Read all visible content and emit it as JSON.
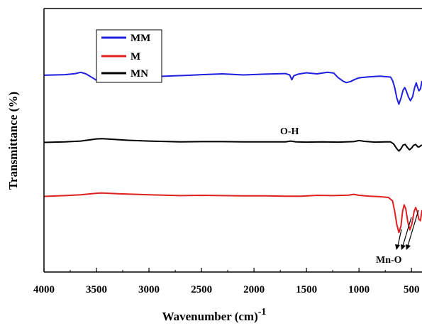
{
  "chart_data": {
    "type": "line",
    "xlabel": "Wavenumber (cm)",
    "xlabel_superscript": "-1",
    "ylabel": "Transmittance (%)",
    "xlim": [
      4000,
      400
    ],
    "x_ticks": [
      4000,
      3500,
      3000,
      2500,
      2000,
      1500,
      1000,
      500
    ],
    "y_ticks_shown": false,
    "grid": false,
    "legend_position": "top-left",
    "legend": [
      {
        "name": "MM",
        "color": "#1f1fe0"
      },
      {
        "name": "M",
        "color": "#e02020"
      },
      {
        "name": "MN",
        "color": "#000000"
      }
    ],
    "annotations": [
      {
        "text": "O-H"
      },
      {
        "text": "Mn-O"
      }
    ],
    "series": [
      {
        "name": "MM",
        "color": "#1f1fe0",
        "points": [
          [
            4000,
            0.747
          ],
          [
            3800,
            0.749
          ],
          [
            3700,
            0.753
          ],
          [
            3650,
            0.758
          ],
          [
            3600,
            0.752
          ],
          [
            3500,
            0.728
          ],
          [
            3450,
            0.725
          ],
          [
            3400,
            0.731
          ],
          [
            3200,
            0.735
          ],
          [
            3000,
            0.741
          ],
          [
            2800,
            0.744
          ],
          [
            2600,
            0.747
          ],
          [
            2500,
            0.749
          ],
          [
            2300,
            0.752
          ],
          [
            2100,
            0.748
          ],
          [
            1900,
            0.751
          ],
          [
            1700,
            0.753
          ],
          [
            1660,
            0.748
          ],
          [
            1640,
            0.73
          ],
          [
            1620,
            0.745
          ],
          [
            1580,
            0.751
          ],
          [
            1500,
            0.756
          ],
          [
            1400,
            0.752
          ],
          [
            1300,
            0.758
          ],
          [
            1240,
            0.755
          ],
          [
            1200,
            0.738
          ],
          [
            1150,
            0.724
          ],
          [
            1120,
            0.719
          ],
          [
            1080,
            0.723
          ],
          [
            1040,
            0.731
          ],
          [
            1000,
            0.737
          ],
          [
            900,
            0.741
          ],
          [
            800,
            0.743
          ],
          [
            700,
            0.74
          ],
          [
            680,
            0.727
          ],
          [
            660,
            0.7
          ],
          [
            640,
            0.66
          ],
          [
            620,
            0.637
          ],
          [
            600,
            0.66
          ],
          [
            580,
            0.69
          ],
          [
            565,
            0.7
          ],
          [
            550,
            0.688
          ],
          [
            530,
            0.665
          ],
          [
            510,
            0.65
          ],
          [
            490,
            0.665
          ],
          [
            470,
            0.7
          ],
          [
            455,
            0.718
          ],
          [
            445,
            0.705
          ],
          [
            430,
            0.688
          ],
          [
            415,
            0.695
          ],
          [
            400,
            0.725
          ]
        ]
      },
      {
        "name": "MN",
        "color": "#000000",
        "points": [
          [
            4000,
            0.492
          ],
          [
            3800,
            0.494
          ],
          [
            3650,
            0.497
          ],
          [
            3500,
            0.505
          ],
          [
            3450,
            0.506
          ],
          [
            3400,
            0.505
          ],
          [
            3200,
            0.5
          ],
          [
            3000,
            0.497
          ],
          [
            2700,
            0.494
          ],
          [
            2500,
            0.495
          ],
          [
            2300,
            0.495
          ],
          [
            2100,
            0.494
          ],
          [
            1900,
            0.494
          ],
          [
            1700,
            0.494
          ],
          [
            1650,
            0.497
          ],
          [
            1600,
            0.494
          ],
          [
            1500,
            0.493
          ],
          [
            1350,
            0.494
          ],
          [
            1200,
            0.493
          ],
          [
            1050,
            0.495
          ],
          [
            1000,
            0.499
          ],
          [
            950,
            0.496
          ],
          [
            850,
            0.493
          ],
          [
            750,
            0.494
          ],
          [
            700,
            0.494
          ],
          [
            670,
            0.486
          ],
          [
            640,
            0.468
          ],
          [
            620,
            0.459
          ],
          [
            600,
            0.468
          ],
          [
            580,
            0.482
          ],
          [
            560,
            0.484
          ],
          [
            540,
            0.473
          ],
          [
            520,
            0.464
          ],
          [
            500,
            0.47
          ],
          [
            480,
            0.481
          ],
          [
            460,
            0.484
          ],
          [
            440,
            0.475
          ],
          [
            425,
            0.475
          ],
          [
            410,
            0.48
          ],
          [
            400,
            0.482
          ]
        ]
      },
      {
        "name": "M",
        "color": "#e02020",
        "points": [
          [
            4000,
            0.287
          ],
          [
            3800,
            0.29
          ],
          [
            3650,
            0.293
          ],
          [
            3500,
            0.299
          ],
          [
            3450,
            0.3
          ],
          [
            3300,
            0.297
          ],
          [
            3000,
            0.293
          ],
          [
            2700,
            0.29
          ],
          [
            2500,
            0.291
          ],
          [
            2300,
            0.29
          ],
          [
            2100,
            0.289
          ],
          [
            1900,
            0.289
          ],
          [
            1700,
            0.288
          ],
          [
            1550,
            0.288
          ],
          [
            1400,
            0.291
          ],
          [
            1250,
            0.29
          ],
          [
            1100,
            0.292
          ],
          [
            1050,
            0.295
          ],
          [
            1000,
            0.291
          ],
          [
            900,
            0.288
          ],
          [
            800,
            0.286
          ],
          [
            720,
            0.283
          ],
          [
            680,
            0.27
          ],
          [
            660,
            0.23
          ],
          [
            640,
            0.18
          ],
          [
            620,
            0.15
          ],
          [
            600,
            0.175
          ],
          [
            585,
            0.23
          ],
          [
            570,
            0.255
          ],
          [
            555,
            0.24
          ],
          [
            535,
            0.19
          ],
          [
            515,
            0.16
          ],
          [
            495,
            0.185
          ],
          [
            475,
            0.23
          ],
          [
            460,
            0.245
          ],
          [
            445,
            0.23
          ],
          [
            430,
            0.2
          ],
          [
            415,
            0.195
          ],
          [
            400,
            0.235
          ]
        ]
      }
    ]
  }
}
